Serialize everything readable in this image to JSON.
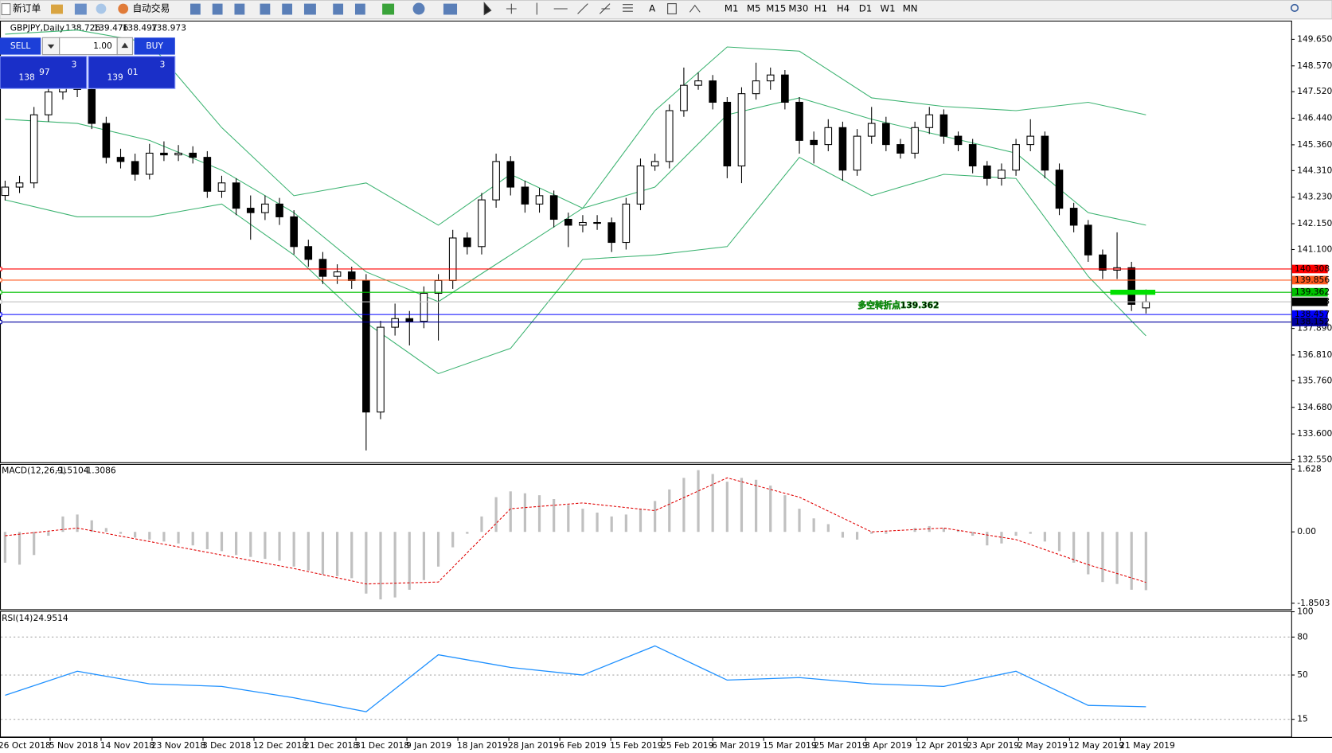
{
  "toolbar": {
    "new_order": "新订单",
    "auto_trading": "自动交易",
    "timeframes": [
      "M1",
      "M5",
      "M15",
      "M30",
      "H1",
      "H4",
      "D1",
      "W1",
      "MN"
    ]
  },
  "trade_panel": {
    "sell": "SELL",
    "buy": "BUY",
    "lots": "1.00",
    "bid": {
      "big": "138",
      "main": "97",
      "small": "3"
    },
    "ask": {
      "big": "139",
      "main": "01",
      "small": "3"
    }
  },
  "chart": {
    "symbol": "GBPJPY,Daily",
    "ylim": [
      132.55,
      149.65
    ],
    "yticks": [
      {
        "value": 149.65,
        "label": "149.650"
      },
      {
        "value": 148.57,
        "label": "148.570"
      },
      {
        "value": 147.52,
        "label": "147.520"
      },
      {
        "value": 146.44,
        "label": "146.440"
      },
      {
        "value": 145.36,
        "label": "145.360"
      },
      {
        "value": 144.31,
        "label": "144.310"
      },
      {
        "value": 143.23,
        "label": "143.230"
      },
      {
        "value": 142.15,
        "label": "142.150"
      },
      {
        "value": 141.1,
        "label": "141.100"
      },
      {
        "value": 137.89,
        "label": "137.890"
      },
      {
        "value": 136.81,
        "label": "136.810"
      },
      {
        "value": 135.76,
        "label": "135.760"
      },
      {
        "value": 134.68,
        "label": "134.680"
      },
      {
        "value": 133.6,
        "label": "133.600"
      },
      {
        "value": 132.55,
        "label": "132.550"
      }
    ],
    "candles": [
      [
        143.3,
        143.9,
        143.1,
        143.64
      ],
      [
        143.64,
        144.1,
        143.4,
        143.81
      ],
      [
        143.81,
        146.9,
        143.6,
        146.58
      ],
      [
        146.58,
        147.8,
        146.3,
        147.51
      ],
      [
        147.51,
        148.1,
        147.2,
        147.78
      ],
      [
        147.78,
        148.0,
        147.3,
        147.61
      ],
      [
        147.61,
        147.9,
        146.0,
        146.23
      ],
      [
        146.23,
        146.5,
        144.6,
        144.85
      ],
      [
        144.85,
        145.2,
        144.4,
        144.68
      ],
      [
        144.68,
        145.0,
        143.9,
        144.16
      ],
      [
        144.16,
        145.4,
        143.95,
        145.02
      ],
      [
        145.02,
        145.5,
        144.7,
        144.95
      ],
      [
        144.95,
        145.35,
        144.7,
        145.02
      ],
      [
        145.02,
        145.3,
        144.6,
        144.85
      ],
      [
        144.85,
        145.1,
        143.2,
        143.47
      ],
      [
        143.47,
        144.1,
        143.2,
        143.81
      ],
      [
        143.81,
        144.0,
        142.5,
        142.78
      ],
      [
        142.78,
        143.3,
        141.5,
        142.6
      ],
      [
        142.6,
        143.3,
        142.3,
        142.95
      ],
      [
        142.95,
        143.2,
        142.1,
        142.43
      ],
      [
        142.43,
        142.7,
        140.9,
        141.22
      ],
      [
        141.22,
        141.5,
        140.4,
        140.7
      ],
      [
        140.7,
        141.0,
        139.7,
        140.01
      ],
      [
        140.01,
        140.5,
        139.7,
        140.19
      ],
      [
        140.19,
        140.4,
        139.5,
        139.84
      ],
      [
        139.84,
        140.1,
        132.93,
        134.49
      ],
      [
        134.49,
        138.2,
        134.2,
        137.94
      ],
      [
        137.94,
        138.9,
        137.6,
        138.29
      ],
      [
        138.29,
        138.6,
        137.2,
        138.18
      ],
      [
        138.18,
        139.6,
        137.9,
        139.32
      ],
      [
        139.32,
        140.1,
        137.4,
        139.84
      ],
      [
        139.84,
        141.9,
        139.5,
        141.57
      ],
      [
        141.57,
        141.8,
        140.9,
        141.22
      ],
      [
        141.22,
        143.4,
        140.9,
        143.12
      ],
      [
        143.12,
        145.0,
        142.8,
        144.68
      ],
      [
        144.68,
        144.9,
        143.3,
        143.64
      ],
      [
        143.64,
        143.9,
        142.6,
        142.95
      ],
      [
        142.95,
        143.6,
        142.6,
        143.29
      ],
      [
        143.29,
        143.5,
        142.0,
        142.33
      ],
      [
        142.33,
        142.6,
        141.2,
        142.09
      ],
      [
        142.09,
        142.5,
        141.8,
        142.2
      ],
      [
        142.2,
        142.5,
        141.9,
        142.19
      ],
      [
        142.19,
        142.4,
        141.0,
        141.39
      ],
      [
        141.39,
        143.2,
        141.1,
        142.95
      ],
      [
        142.95,
        144.8,
        142.7,
        144.5
      ],
      [
        144.5,
        145.0,
        144.3,
        144.68
      ],
      [
        144.68,
        147.0,
        144.4,
        146.75
      ],
      [
        146.75,
        148.5,
        146.5,
        147.78
      ],
      [
        147.78,
        148.3,
        147.6,
        147.96
      ],
      [
        147.96,
        148.2,
        146.8,
        147.09
      ],
      [
        147.09,
        147.3,
        144.0,
        144.5
      ],
      [
        144.5,
        147.7,
        143.8,
        147.44
      ],
      [
        147.44,
        148.7,
        147.2,
        147.96
      ],
      [
        147.96,
        148.5,
        147.6,
        148.2
      ],
      [
        148.2,
        148.4,
        146.8,
        147.09
      ],
      [
        147.09,
        147.3,
        145.0,
        145.54
      ],
      [
        145.54,
        145.9,
        144.6,
        145.37
      ],
      [
        145.37,
        146.4,
        145.1,
        146.06
      ],
      [
        146.06,
        146.3,
        143.9,
        144.33
      ],
      [
        144.33,
        146.0,
        144.1,
        145.71
      ],
      [
        145.71,
        146.9,
        145.4,
        146.23
      ],
      [
        146.23,
        146.5,
        145.1,
        145.37
      ],
      [
        145.37,
        145.6,
        144.8,
        145.02
      ],
      [
        145.02,
        146.3,
        144.8,
        146.06
      ],
      [
        146.06,
        146.9,
        145.8,
        146.58
      ],
      [
        146.58,
        146.8,
        145.4,
        145.71
      ],
      [
        145.71,
        145.9,
        145.1,
        145.37
      ],
      [
        145.37,
        145.6,
        144.2,
        144.5
      ],
      [
        144.5,
        144.7,
        143.7,
        143.99
      ],
      [
        143.99,
        144.6,
        143.7,
        144.33
      ],
      [
        144.33,
        145.6,
        144.1,
        145.37
      ],
      [
        145.37,
        146.4,
        145.1,
        145.71
      ],
      [
        145.71,
        145.9,
        144.0,
        144.33
      ],
      [
        144.33,
        144.6,
        142.5,
        142.78
      ],
      [
        142.78,
        143.0,
        141.8,
        142.09
      ],
      [
        142.09,
        142.3,
        140.6,
        140.88
      ],
      [
        140.88,
        141.1,
        139.9,
        140.26
      ],
      [
        140.26,
        141.8,
        139.9,
        140.36
      ],
      [
        140.36,
        140.6,
        138.6,
        138.87
      ],
      [
        138.726,
        139.476,
        138.497,
        138.973
      ]
    ],
    "bands": {
      "color": "#3cb371",
      "upper": [
        149.86,
        150.03,
        149.51,
        146.06,
        143.29,
        143.81,
        142.09,
        144.16,
        142.78,
        146.75,
        149.34,
        149.17,
        147.27,
        146.92,
        146.75,
        147.09,
        146.58
      ],
      "middle": [
        146.4,
        146.23,
        145.54,
        144.33,
        142.6,
        140.19,
        138.98,
        140.88,
        142.78,
        143.64,
        146.58,
        147.27,
        146.4,
        145.71,
        145.02,
        142.6,
        142.09
      ],
      "lower": [
        143.12,
        142.43,
        142.43,
        142.95,
        140.88,
        138.12,
        136.05,
        137.08,
        140.7,
        140.88,
        141.22,
        144.85,
        143.29,
        144.16,
        143.99,
        140.01,
        137.59
      ]
    },
    "hlines": [
      {
        "value": 140.308,
        "color": "#ff0000"
      },
      {
        "value": 139.856,
        "color": "#ff5a1f"
      },
      {
        "value": 139.362,
        "color": "#00c000"
      },
      {
        "value": 138.973,
        "color": "#c0c0c0",
        "label_bg": "#000000"
      },
      {
        "value": 138.457,
        "color": "#0000ff"
      },
      {
        "value": 138.152,
        "color": "#0000a0"
      }
    ],
    "annotation": "多空转折点139.362",
    "dates": [
      "26 Oct 2018",
      "5 Nov 2018",
      "14 Nov 2018",
      "23 Nov 2018",
      "3 Dec 2018",
      "12 Dec 2018",
      "21 Dec 2018",
      "31 Dec 2018",
      "9 Jan 2019",
      "18 Jan 2019",
      "28 Jan 2019",
      "6 Feb 2019",
      "15 Feb 2019",
      "25 Feb 2019",
      "6 Mar 2019",
      "15 Mar 2019",
      "25 Mar 2019",
      "3 Apr 2019",
      "12 Apr 2019",
      "23 Apr 2019",
      "2 May 2019",
      "12 May 2019",
      "21 May 2019"
    ]
  },
  "macd": {
    "label": "MACD(12,26,9)",
    "ylim": [
      -1.8503,
      1.628
    ],
    "yticks": [
      1.628,
      {
        "value": 0,
        "label": "0.00"
      },
      -1.8503
    ],
    "histogram": [
      -0.8,
      -0.85,
      -0.6,
      -0.1,
      0.4,
      0.45,
      0.3,
      0.1,
      -0.05,
      -0.15,
      -0.2,
      -0.25,
      -0.3,
      -0.35,
      -0.45,
      -0.5,
      -0.6,
      -0.65,
      -0.7,
      -0.75,
      -0.9,
      -1.0,
      -1.1,
      -1.15,
      -1.2,
      -1.6,
      -1.75,
      -1.7,
      -1.5,
      -1.25,
      -0.9,
      -0.4,
      -0.05,
      0.4,
      0.9,
      1.05,
      1.0,
      0.95,
      0.85,
      0.7,
      0.6,
      0.5,
      0.4,
      0.45,
      0.6,
      0.8,
      1.1,
      1.4,
      1.6,
      1.5,
      1.3,
      1.4,
      1.35,
      1.2,
      0.95,
      0.6,
      0.35,
      0.2,
      -0.15,
      -0.2,
      -0.05,
      -0.05,
      0.0,
      0.1,
      0.15,
      0.1,
      0.05,
      -0.1,
      -0.35,
      -0.3,
      -0.1,
      -0.05,
      -0.25,
      -0.5,
      -0.8,
      -1.1,
      -1.3,
      -1.35,
      -1.5,
      -1.5104
    ],
    "signal": [
      -0.1,
      0.1,
      -0.25,
      -0.6,
      -0.95,
      -1.35,
      -1.3,
      0.6,
      0.75,
      0.55,
      1.4,
      0.9,
      0.0,
      0.1,
      -0.2,
      -0.85,
      -1.3086
    ]
  },
  "rsi": {
    "label": "RSI(14)",
    "ylim": [
      0,
      100
    ],
    "yticks": [
      100,
      80,
      50,
      15
    ],
    "values": [
      34,
      53,
      43,
      41,
      32,
      21,
      66,
      56,
      50,
      73,
      46,
      48,
      43,
      41,
      53,
      26,
      24.9514
    ]
  }
}
